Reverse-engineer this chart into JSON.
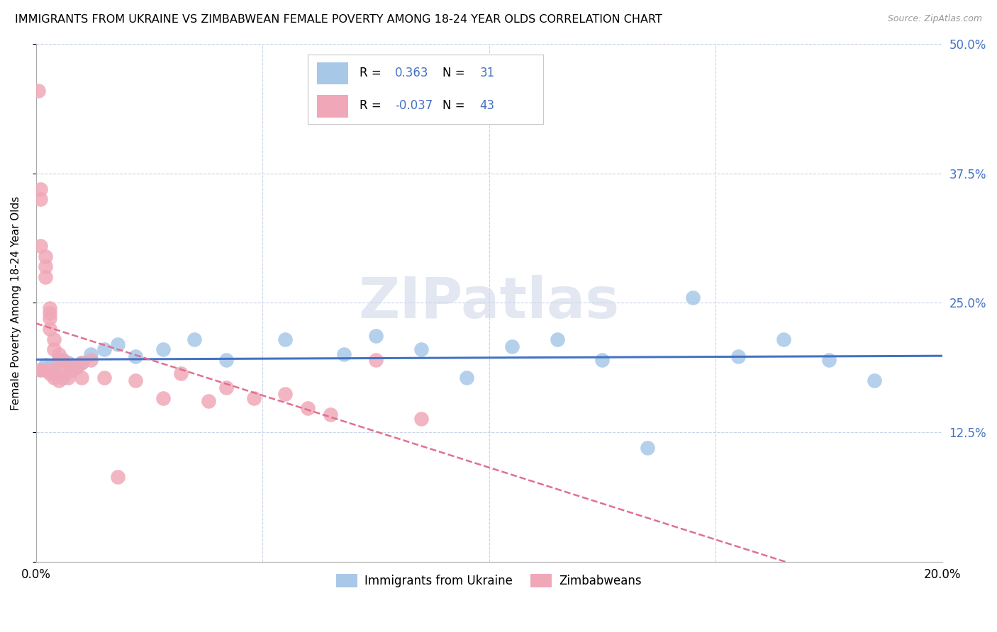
{
  "title": "IMMIGRANTS FROM UKRAINE VS ZIMBABWEAN FEMALE POVERTY AMONG 18-24 YEAR OLDS CORRELATION CHART",
  "source": "Source: ZipAtlas.com",
  "ylabel": "Female Poverty Among 18-24 Year Olds",
  "xlim": [
    0.0,
    0.2
  ],
  "ylim": [
    0.0,
    0.5
  ],
  "blue_color": "#a8c8e8",
  "pink_color": "#f0a8b8",
  "blue_line_color": "#4472c4",
  "pink_line_color": "#e07090",
  "background_color": "#ffffff",
  "grid_color": "#c8d4e8",
  "watermark": "ZIPatlas",
  "series1_label": "Immigrants from Ukraine",
  "series2_label": "Zimbabweans",
  "blue_R": 0.363,
  "blue_N": 31,
  "pink_R": -0.037,
  "pink_N": 43,
  "blue_points_x": [
    0.001,
    0.002,
    0.003,
    0.004,
    0.005,
    0.006,
    0.007,
    0.008,
    0.009,
    0.01,
    0.012,
    0.015,
    0.018,
    0.022,
    0.028,
    0.035,
    0.042,
    0.055,
    0.068,
    0.075,
    0.085,
    0.095,
    0.105,
    0.115,
    0.125,
    0.135,
    0.145,
    0.155,
    0.165,
    0.175,
    0.185
  ],
  "blue_points_y": [
    0.185,
    0.19,
    0.188,
    0.182,
    0.195,
    0.178,
    0.192,
    0.185,
    0.188,
    0.192,
    0.2,
    0.205,
    0.21,
    0.198,
    0.205,
    0.215,
    0.195,
    0.215,
    0.2,
    0.218,
    0.205,
    0.178,
    0.208,
    0.215,
    0.195,
    0.11,
    0.255,
    0.198,
    0.215,
    0.195,
    0.175
  ],
  "pink_points_x": [
    0.0005,
    0.001,
    0.001,
    0.001,
    0.001,
    0.002,
    0.002,
    0.002,
    0.002,
    0.003,
    0.003,
    0.003,
    0.003,
    0.003,
    0.004,
    0.004,
    0.004,
    0.004,
    0.005,
    0.005,
    0.005,
    0.006,
    0.006,
    0.007,
    0.007,
    0.008,
    0.009,
    0.01,
    0.01,
    0.012,
    0.015,
    0.018,
    0.022,
    0.028,
    0.032,
    0.038,
    0.042,
    0.048,
    0.055,
    0.06,
    0.065,
    0.075,
    0.085
  ],
  "pink_points_y": [
    0.455,
    0.35,
    0.36,
    0.305,
    0.185,
    0.295,
    0.285,
    0.275,
    0.185,
    0.245,
    0.24,
    0.235,
    0.225,
    0.182,
    0.215,
    0.205,
    0.185,
    0.178,
    0.2,
    0.195,
    0.175,
    0.195,
    0.182,
    0.19,
    0.178,
    0.185,
    0.188,
    0.192,
    0.178,
    0.195,
    0.178,
    0.082,
    0.175,
    0.158,
    0.182,
    0.155,
    0.168,
    0.158,
    0.162,
    0.148,
    0.142,
    0.195,
    0.138
  ]
}
